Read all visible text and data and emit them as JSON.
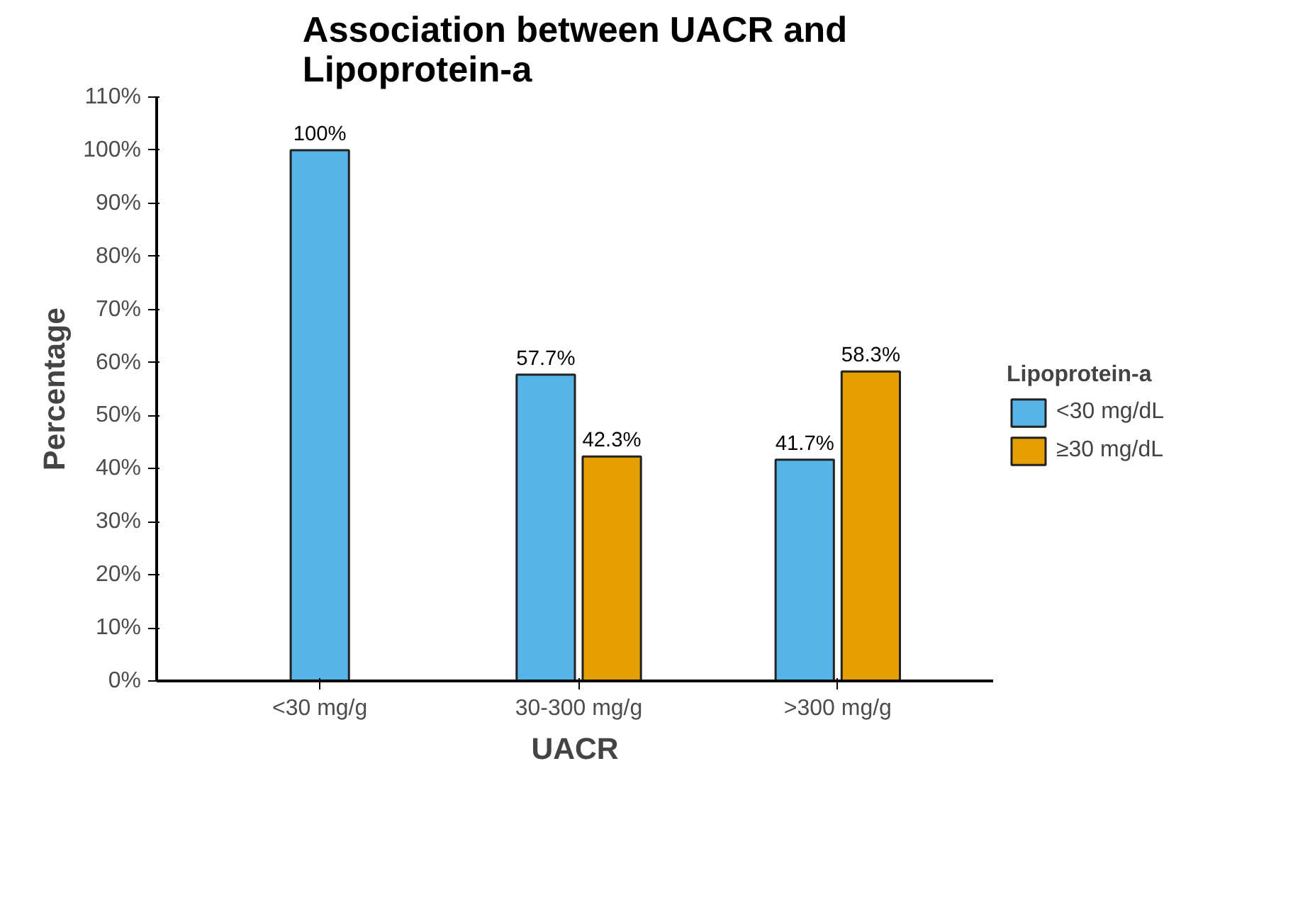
{
  "chart_data": {
    "type": "bar",
    "title": "Association between UACR and\nLipoprotein-a",
    "xlabel": "UACR",
    "ylabel": "Percentage",
    "legend_title": "Lipoprotein-a",
    "categories": [
      "<30 mg/g",
      "30-300 mg/g",
      ">300 mg/g"
    ],
    "series": [
      {
        "name": "<30 mg/dL",
        "color": "#56b4e9",
        "values": [
          100,
          57.7,
          41.7
        ],
        "value_labels": [
          "100%",
          "57.7%",
          "41.7%"
        ]
      },
      {
        "name": "≥30 mg/dL",
        "color": "#e69f00",
        "values": [
          null,
          42.3,
          58.3
        ],
        "value_labels": [
          null,
          "42.3%",
          "58.3%"
        ]
      }
    ],
    "ylim": [
      0,
      110
    ],
    "yticks": [
      {
        "value": 0,
        "label": "0%"
      },
      {
        "value": 10,
        "label": "10%"
      },
      {
        "value": 20,
        "label": "20%"
      },
      {
        "value": 30,
        "label": "30%"
      },
      {
        "value": 40,
        "label": "40%"
      },
      {
        "value": 50,
        "label": "50%"
      },
      {
        "value": 60,
        "label": "60%"
      },
      {
        "value": 70,
        "label": "70%"
      },
      {
        "value": 80,
        "label": "80%"
      },
      {
        "value": 90,
        "label": "90%"
      },
      {
        "value": 100,
        "label": "100%"
      },
      {
        "value": 110,
        "label": "110%"
      }
    ],
    "grid": false,
    "legend": "right"
  }
}
